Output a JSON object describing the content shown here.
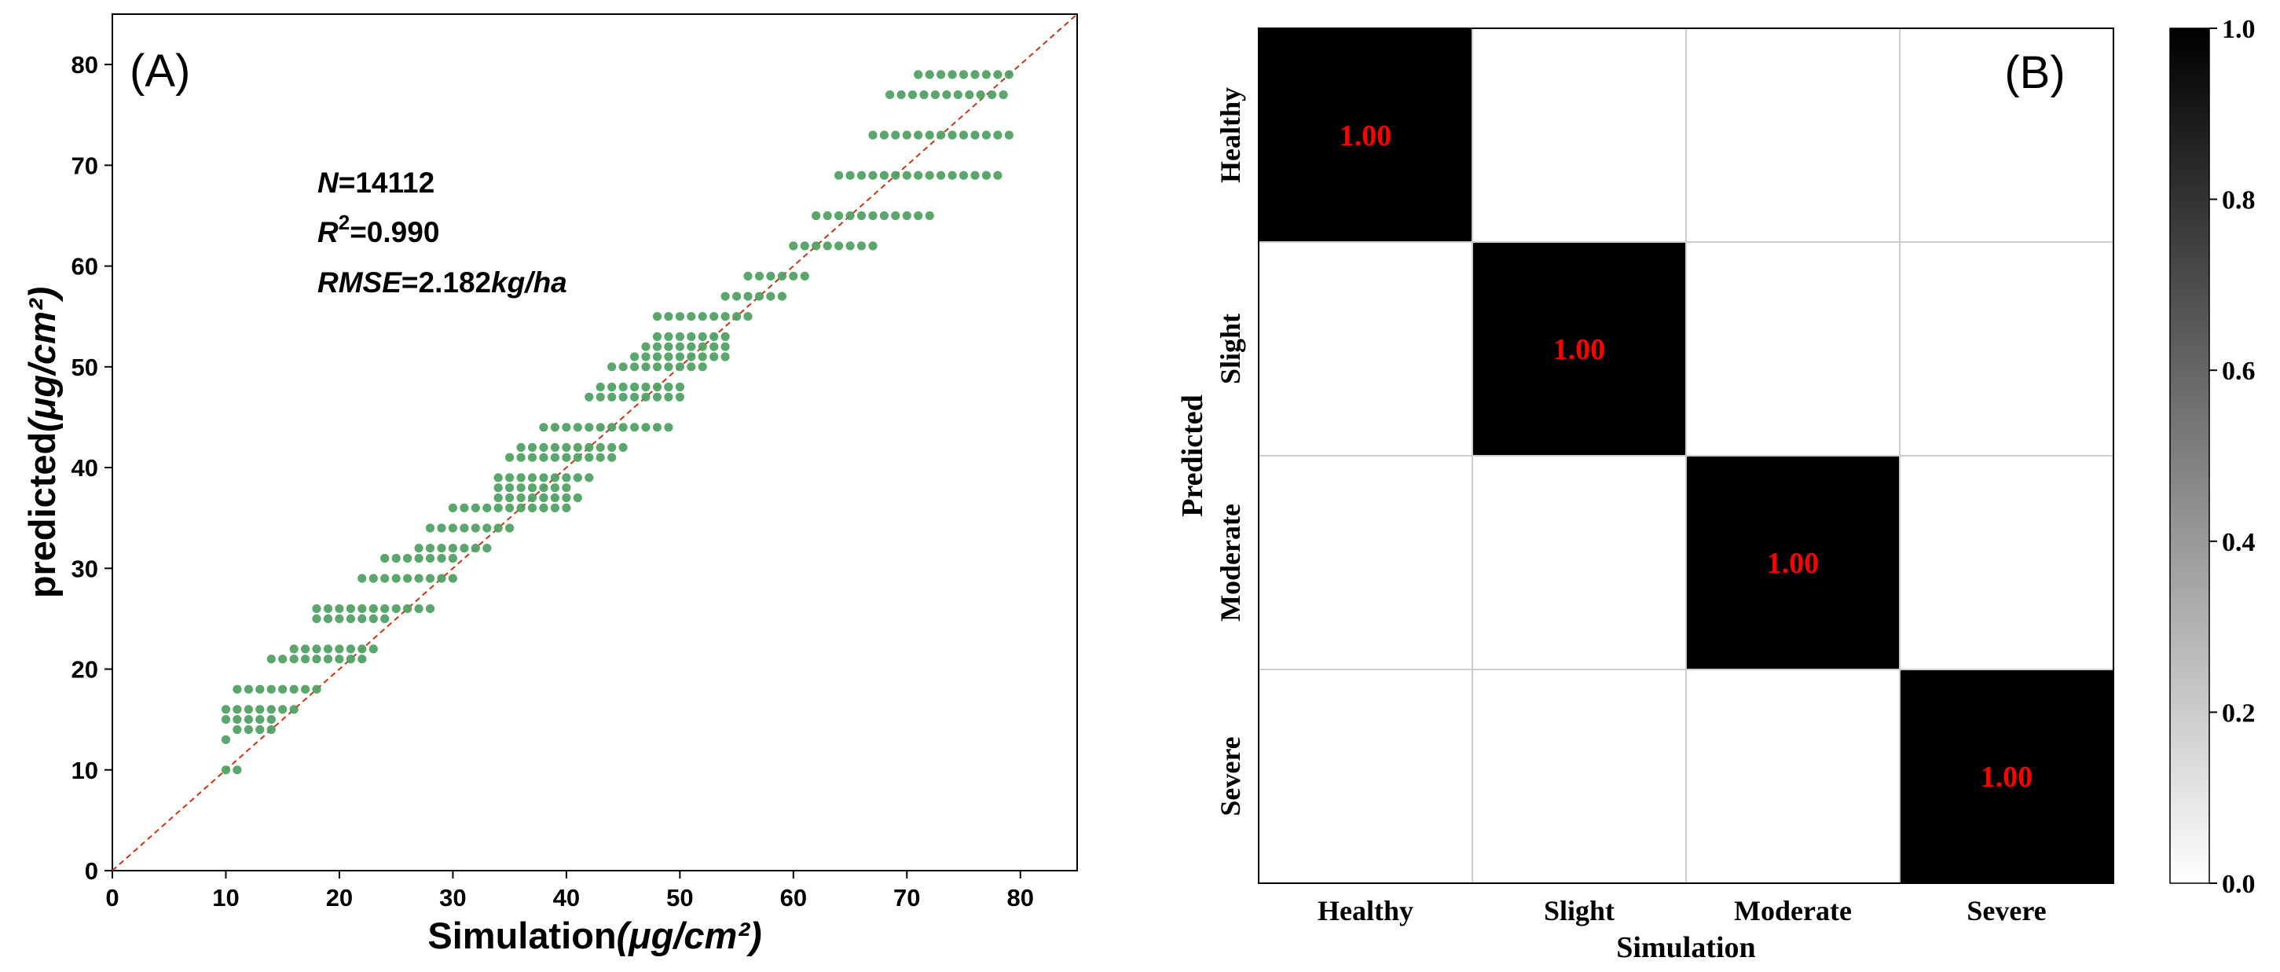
{
  "chart_data": [
    {
      "type": "scatter",
      "panel_label": "(A)",
      "xlabel": "Simulation",
      "xlabel_unit": "(μg/cm²)",
      "ylabel": "predicted",
      "ylabel_unit": "(μg/cm²)",
      "xlim": [
        0,
        85
      ],
      "ylim": [
        0,
        85
      ],
      "xticks": [
        0,
        10,
        20,
        30,
        40,
        50,
        60,
        70,
        80
      ],
      "yticks": [
        0,
        10,
        20,
        30,
        40,
        50,
        60,
        70,
        80
      ],
      "reference_line": {
        "type": "1:1",
        "style": "dashed",
        "color": "#cc3311"
      },
      "marker_color": "#4d9e5f",
      "annotations": {
        "n_label": "N",
        "n_value": "=14112",
        "r2_label": "R",
        "r2_sup": "2",
        "r2_value": "=0.990",
        "rmse_label": "RMSE",
        "rmse_value": "=2.182",
        "rmse_unit": "kg/ha"
      },
      "point_rows": [
        {
          "y": 79,
          "x": [
            71,
            79
          ]
        },
        {
          "y": 77,
          "x": [
            68.5,
            79
          ]
        },
        {
          "y": 73,
          "x": [
            67,
            79
          ]
        },
        {
          "y": 69,
          "x": [
            64,
            78
          ]
        },
        {
          "y": 65,
          "x": [
            62,
            72
          ]
        },
        {
          "y": 62,
          "x": [
            60,
            67
          ]
        },
        {
          "y": 59,
          "x": [
            56,
            61
          ]
        },
        {
          "y": 57,
          "x": [
            54,
            59
          ]
        },
        {
          "y": 55,
          "x": [
            48,
            56
          ]
        },
        {
          "y": 53,
          "x": [
            48,
            54
          ]
        },
        {
          "y": 52,
          "x": [
            47,
            54
          ]
        },
        {
          "y": 51,
          "x": [
            46,
            54
          ]
        },
        {
          "y": 50,
          "x": [
            44,
            52
          ]
        },
        {
          "y": 48,
          "x": [
            43,
            50
          ]
        },
        {
          "y": 47,
          "x": [
            42,
            50
          ]
        },
        {
          "y": 44,
          "x": [
            38,
            49
          ]
        },
        {
          "y": 42,
          "x": [
            36,
            45
          ]
        },
        {
          "y": 41,
          "x": [
            35,
            44
          ]
        },
        {
          "y": 39,
          "x": [
            34,
            42
          ]
        },
        {
          "y": 38,
          "x": [
            34,
            40
          ]
        },
        {
          "y": 37,
          "x": [
            34,
            41
          ]
        },
        {
          "y": 36,
          "x": [
            30,
            40
          ]
        },
        {
          "y": 34,
          "x": [
            28,
            35
          ]
        },
        {
          "y": 32,
          "x": [
            27,
            33
          ]
        },
        {
          "y": 31,
          "x": [
            24,
            30
          ]
        },
        {
          "y": 29,
          "x": [
            22,
            30
          ]
        },
        {
          "y": 26,
          "x": [
            18,
            28
          ]
        },
        {
          "y": 25,
          "x": [
            18,
            24
          ]
        },
        {
          "y": 22,
          "x": [
            16,
            23
          ]
        },
        {
          "y": 21,
          "x": [
            14,
            22
          ]
        },
        {
          "y": 18,
          "x": [
            11,
            18
          ]
        },
        {
          "y": 16,
          "x": [
            10,
            16
          ]
        },
        {
          "y": 15,
          "x": [
            10,
            14
          ]
        },
        {
          "y": 14,
          "x": [
            11,
            14
          ]
        },
        {
          "y": 13,
          "x": [
            10,
            10
          ]
        },
        {
          "y": 10,
          "x": [
            10,
            11
          ]
        }
      ]
    },
    {
      "type": "heatmap",
      "panel_label": "(B)",
      "xlabel": "Simulation",
      "ylabel": "Predicted",
      "x_categories": [
        "Healthy",
        "Slight",
        "Moderate",
        "Severe"
      ],
      "y_categories": [
        "Healthy",
        "Slight",
        "Moderate",
        "Severe"
      ],
      "values": [
        [
          1.0,
          0.0,
          0.0,
          0.0
        ],
        [
          0.0,
          1.0,
          0.0,
          0.0
        ],
        [
          0.0,
          0.0,
          1.0,
          0.0
        ],
        [
          0.0,
          0.0,
          0.0,
          1.0
        ]
      ],
      "cell_labels": [
        [
          "1.00",
          "",
          "",
          ""
        ],
        [
          "",
          "1.00",
          "",
          ""
        ],
        [
          "",
          "",
          "1.00",
          ""
        ],
        [
          "",
          "",
          "",
          "1.00"
        ]
      ],
      "label_color": "#ff0000",
      "colorscale": {
        "low": "#ffffff",
        "high": "#000000",
        "min": 0.0,
        "max": 1.0
      },
      "colorbar_ticks": [
        "0.0",
        "0.2",
        "0.4",
        "0.6",
        "0.8",
        "1.0"
      ]
    }
  ]
}
